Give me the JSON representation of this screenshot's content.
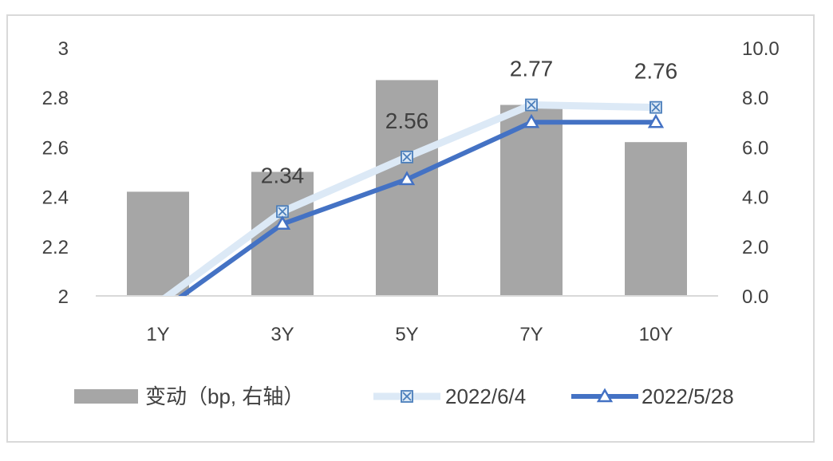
{
  "chart_data": {
    "type": "bar+line",
    "categories": [
      "1Y",
      "3Y",
      "5Y",
      "7Y",
      "10Y"
    ],
    "bar_series": {
      "name": "变动（bp, 右轴）",
      "axis": "right",
      "values": [
        4.2,
        5.0,
        8.7,
        7.7,
        6.2
      ],
      "color": "#a6a6a6"
    },
    "line_series": [
      {
        "name": "2022/6/4",
        "axis": "left",
        "values": [
          1.97,
          2.34,
          2.56,
          2.77,
          2.76
        ],
        "data_labels": [
          "",
          "2.34",
          "2.56",
          "2.77",
          "2.76"
        ],
        "color": "#dce9f6",
        "marker": "square-x",
        "marker_color": "#4a7ebb"
      },
      {
        "name": "2022/5/28",
        "axis": "left",
        "values": [
          1.93,
          2.29,
          2.47,
          2.7,
          2.7
        ],
        "color": "#4472c4",
        "marker": "triangle"
      }
    ],
    "y_left": {
      "ylim": [
        2,
        3
      ],
      "ticks": [
        "2",
        "2.2",
        "2.4",
        "2.6",
        "2.8",
        "3"
      ]
    },
    "y_right": {
      "ylim": [
        0,
        10
      ],
      "ticks": [
        "0.0",
        "2.0",
        "4.0",
        "6.0",
        "8.0",
        "10.0"
      ]
    },
    "grid": false,
    "legend_position": "bottom"
  }
}
